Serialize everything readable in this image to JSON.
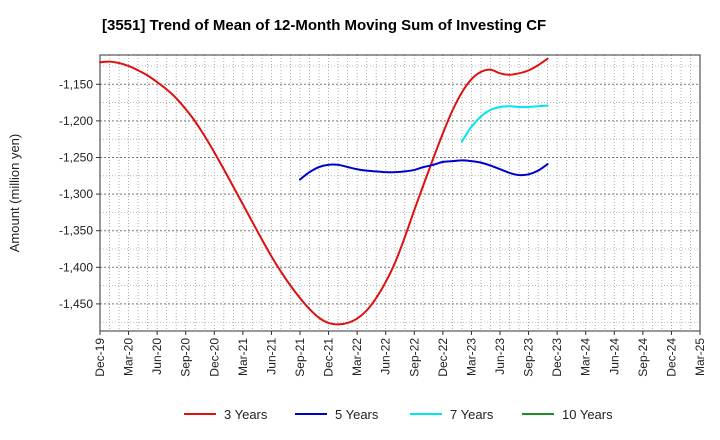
{
  "chart_data": {
    "type": "line",
    "title": "[3551]  Trend of Mean of 12-Month Moving Sum of Investing CF",
    "xlabel": "",
    "ylabel": "Amount (million yen)",
    "ylim": [
      -1487,
      -1110
    ],
    "y_ticks": [
      -1150,
      -1200,
      -1250,
      -1300,
      -1350,
      -1400,
      -1450
    ],
    "y_tick_labels": [
      "-1,150",
      "-1,200",
      "-1,250",
      "-1,300",
      "-1,350",
      "-1,400",
      "-1,450"
    ],
    "x_tick_labels": [
      "Dec-19",
      "Mar-20",
      "Jun-20",
      "Sep-20",
      "Dec-20",
      "Mar-21",
      "Jun-21",
      "Sep-21",
      "Dec-21",
      "Mar-22",
      "Jun-22",
      "Sep-22",
      "Dec-22",
      "Mar-23",
      "Jun-23",
      "Sep-23",
      "Dec-23",
      "Mar-24",
      "Jun-24",
      "Sep-24",
      "Dec-24",
      "Mar-25"
    ],
    "x_range_months": [
      0,
      63
    ],
    "grid": true,
    "legend_position": "bottom",
    "series": [
      {
        "name": "3 Years",
        "color": "#dd1111",
        "points": [
          [
            0,
            -1120
          ],
          [
            1,
            -1119
          ],
          [
            2,
            -1121
          ],
          [
            3,
            -1125
          ],
          [
            4,
            -1131
          ],
          [
            5,
            -1138
          ],
          [
            6,
            -1147
          ],
          [
            7,
            -1157
          ],
          [
            8,
            -1169
          ],
          [
            9,
            -1184
          ],
          [
            10,
            -1201
          ],
          [
            11,
            -1221
          ],
          [
            12,
            -1243
          ],
          [
            13,
            -1266
          ],
          [
            14,
            -1290
          ],
          [
            15,
            -1314
          ],
          [
            16,
            -1338
          ],
          [
            17,
            -1362
          ],
          [
            18,
            -1385
          ],
          [
            19,
            -1406
          ],
          [
            20,
            -1425
          ],
          [
            21,
            -1442
          ],
          [
            22,
            -1457
          ],
          [
            23,
            -1469
          ],
          [
            24,
            -1476
          ],
          [
            25,
            -1478
          ],
          [
            26,
            -1476
          ],
          [
            27,
            -1470
          ],
          [
            28,
            -1459
          ],
          [
            29,
            -1442
          ],
          [
            30,
            -1420
          ],
          [
            31,
            -1393
          ],
          [
            32,
            -1359
          ],
          [
            33,
            -1322
          ],
          [
            34,
            -1286
          ],
          [
            35,
            -1251
          ],
          [
            36,
            -1217
          ],
          [
            37,
            -1186
          ],
          [
            38,
            -1161
          ],
          [
            39,
            -1143
          ],
          [
            40,
            -1133
          ],
          [
            41,
            -1130
          ],
          [
            42,
            -1135
          ],
          [
            43,
            -1137
          ],
          [
            44,
            -1135
          ],
          [
            45,
            -1131
          ],
          [
            46,
            -1124
          ],
          [
            47,
            -1115
          ]
        ]
      },
      {
        "name": "5 Years",
        "color": "#0000cc",
        "points": [
          [
            21,
            -1280
          ],
          [
            22,
            -1270
          ],
          [
            23,
            -1263
          ],
          [
            24,
            -1260
          ],
          [
            25,
            -1260
          ],
          [
            26,
            -1263
          ],
          [
            27,
            -1266
          ],
          [
            28,
            -1268
          ],
          [
            29,
            -1269
          ],
          [
            30,
            -1270
          ],
          [
            31,
            -1270
          ],
          [
            32,
            -1269
          ],
          [
            33,
            -1267
          ],
          [
            34,
            -1263
          ],
          [
            35,
            -1260
          ],
          [
            36,
            -1256
          ],
          [
            37,
            -1255
          ],
          [
            38,
            -1254
          ],
          [
            39,
            -1255
          ],
          [
            40,
            -1257
          ],
          [
            41,
            -1261
          ],
          [
            42,
            -1266
          ],
          [
            43,
            -1271
          ],
          [
            44,
            -1274
          ],
          [
            45,
            -1273
          ],
          [
            46,
            -1268
          ],
          [
            47,
            -1259
          ]
        ]
      },
      {
        "name": "7 Years",
        "color": "#00e5ee",
        "points": [
          [
            38,
            -1228
          ],
          [
            39,
            -1208
          ],
          [
            40,
            -1194
          ],
          [
            41,
            -1185
          ],
          [
            42,
            -1181
          ],
          [
            43,
            -1180
          ],
          [
            44,
            -1181
          ],
          [
            45,
            -1181
          ],
          [
            46,
            -1180
          ],
          [
            47,
            -1179
          ]
        ]
      },
      {
        "name": "10 Years",
        "color": "#228b22",
        "points": []
      }
    ]
  }
}
